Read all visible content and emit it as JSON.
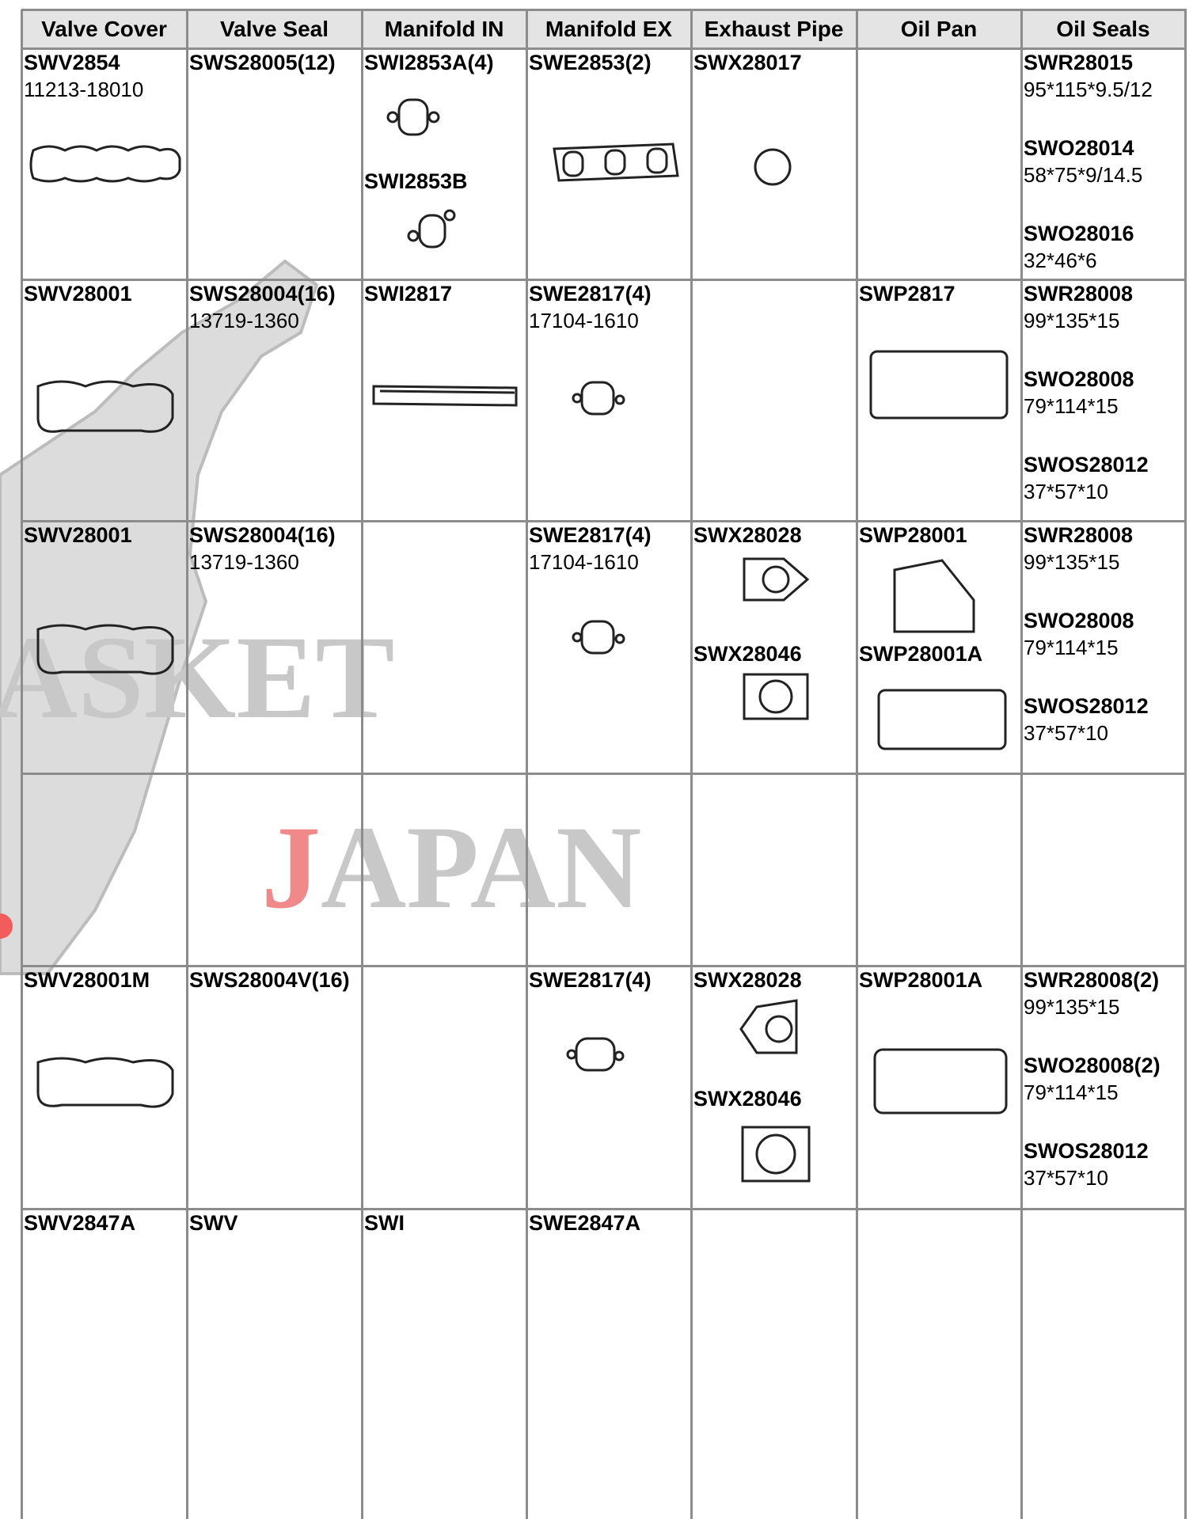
{
  "watermark": {
    "line1": "ASKET",
    "line2": "JAPAN"
  },
  "table": {
    "headers": [
      "Valve Cover",
      "Valve Seal",
      "Manifold IN",
      "Manifold EX",
      "Exhaust Pipe",
      "Oil Pan",
      "Oil Seals"
    ],
    "rows": [
      [
        [
          {
            "code": "SWV2854",
            "spec": "11213-18010"
          }
        ],
        [
          {
            "code": "SWS28005(12)"
          }
        ],
        [
          {
            "code": "SWI2853A(4)"
          },
          {
            "code": "SWI2853B"
          }
        ],
        [
          {
            "code": "SWE2853(2)"
          }
        ],
        [
          {
            "code": "SWX28017"
          }
        ],
        [],
        [
          {
            "code": "SWR28015",
            "spec": "95*115*9.5/12"
          },
          {
            "code": "SWO28014",
            "spec": "58*75*9/14.5"
          },
          {
            "code": "SWO28016",
            "spec": "32*46*6"
          }
        ]
      ],
      [
        [
          {
            "code": "SWV28001"
          }
        ],
        [
          {
            "code": "SWS28004(16)",
            "spec": "13719-1360"
          }
        ],
        [
          {
            "code": "SWI2817"
          }
        ],
        [
          {
            "code": "SWE2817(4)",
            "spec": "17104-1610"
          }
        ],
        [],
        [
          {
            "code": "SWP2817"
          }
        ],
        [
          {
            "code": "SWR28008",
            "spec": "99*135*15"
          },
          {
            "code": "SWO28008",
            "spec": "79*114*15"
          },
          {
            "code": "SWOS28012",
            "spec": "37*57*10"
          }
        ]
      ],
      [
        [
          {
            "code": "SWV28001"
          }
        ],
        [
          {
            "code": "SWS28004(16)",
            "spec": "13719-1360"
          }
        ],
        [],
        [
          {
            "code": "SWE2817(4)",
            "spec": "17104-1610"
          }
        ],
        [
          {
            "code": "SWX28028"
          },
          {
            "code": "SWX28046"
          }
        ],
        [
          {
            "code": "SWP28001"
          },
          {
            "code": "SWP28001A"
          }
        ],
        [
          {
            "code": "SWR28008",
            "spec": "99*135*15"
          },
          {
            "code": "SWO28008",
            "spec": "79*114*15"
          },
          {
            "code": "SWOS28012",
            "spec": "37*57*10"
          }
        ]
      ],
      [
        [],
        [],
        [],
        [],
        [],
        [],
        []
      ],
      [
        [
          {
            "code": "SWV28001M"
          }
        ],
        [
          {
            "code": "SWS28004V(16)"
          }
        ],
        [],
        [
          {
            "code": "SWE2817(4)"
          }
        ],
        [
          {
            "code": "SWX28028"
          },
          {
            "code": "SWX28046"
          }
        ],
        [
          {
            "code": "SWP28001A"
          }
        ],
        [
          {
            "code": "SWR28008(2)",
            "spec": "99*135*15"
          },
          {
            "code": "SWO28008(2)",
            "spec": "79*114*15"
          },
          {
            "code": "SWOS28012",
            "spec": "37*57*10"
          }
        ]
      ],
      [
        [
          {
            "code": "SWV2847A"
          }
        ],
        [
          {
            "code": "SWV"
          }
        ],
        [
          {
            "code": "SWI"
          }
        ],
        [
          {
            "code": "SWE2847A"
          }
        ],
        [],
        [],
        []
      ]
    ]
  }
}
